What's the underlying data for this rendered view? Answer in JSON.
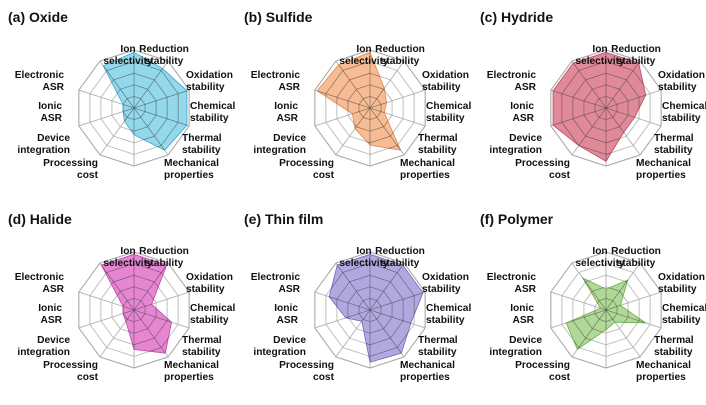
{
  "figure": {
    "axes": [
      [
        "Ion",
        "selectivity"
      ],
      [
        "Reduction",
        "stability"
      ],
      [
        "Oxidation",
        "stability"
      ],
      [
        "Chemical",
        "stability"
      ],
      [
        "Thermal",
        "stability"
      ],
      [
        "Mechanical",
        "properties"
      ],
      [
        "Processing",
        "cost"
      ],
      [
        "Device",
        "integration"
      ],
      [
        "Ionic",
        "ASR"
      ],
      [
        "Electronic",
        "ASR"
      ]
    ],
    "scale": {
      "min": 0,
      "max": 5,
      "rings": 5
    }
  },
  "chart_data": [
    {
      "type": "radar",
      "title": "(a) Oxide",
      "color": "#7bd0e6",
      "stroke": "#3aa7c7",
      "categories": [
        "Ion selectivity",
        "Reduction stability",
        "Oxidation stability",
        "Chemical stability",
        "Thermal stability",
        "Mechanical properties",
        "Processing cost",
        "Device integration",
        "Ionic ASR",
        "Electronic ASR"
      ],
      "values": [
        4.8,
        4.2,
        4.8,
        4.8,
        4.5,
        2.3,
        1.4,
        1.0,
        1.0,
        4.5
      ]
    },
    {
      "type": "radar",
      "title": "(b) Sulfide",
      "color": "#f5ad7c",
      "stroke": "#e08a50",
      "categories": [
        "Ion selectivity",
        "Reduction stability",
        "Oxidation stability",
        "Chemical stability",
        "Thermal stability",
        "Mechanical properties",
        "Processing cost",
        "Device integration",
        "Ionic ASR",
        "Electronic ASR"
      ],
      "values": [
        4.8,
        2.1,
        1.5,
        1.3,
        4.5,
        3.2,
        2.2,
        1.6,
        4.8,
        4.6
      ]
    },
    {
      "type": "radar",
      "title": "(c) Hydride",
      "color": "#d96f82",
      "stroke": "#b84b61",
      "categories": [
        "Ion selectivity",
        "Reduction stability",
        "Oxidation stability",
        "Chemical stability",
        "Thermal stability",
        "Mechanical properties",
        "Processing cost",
        "Device integration",
        "Ionic ASR",
        "Electronic ASR"
      ],
      "values": [
        4.8,
        4.8,
        3.6,
        2.6,
        2.6,
        4.6,
        4.0,
        4.8,
        4.8,
        4.8
      ]
    },
    {
      "type": "radar",
      "title": "(d) Halide",
      "color": "#e06ac8",
      "stroke": "#c246a8",
      "categories": [
        "Ion selectivity",
        "Reduction stability",
        "Oxidation stability",
        "Chemical stability",
        "Thermal stability",
        "Mechanical properties",
        "Processing cost",
        "Device integration",
        "Ionic ASR",
        "Electronic ASR"
      ],
      "values": [
        4.8,
        4.8,
        1.6,
        3.4,
        4.6,
        3.4,
        1.2,
        1.0,
        1.0,
        4.8
      ]
    },
    {
      "type": "radar",
      "title": "(e) Thin film",
      "color": "#9f96d8",
      "stroke": "#7168b8",
      "categories": [
        "Ion selectivity",
        "Reduction stability",
        "Oxidation stability",
        "Chemical stability",
        "Thermal stability",
        "Mechanical properties",
        "Processing cost",
        "Device integration",
        "Ionic ASR",
        "Electronic ASR"
      ],
      "values": [
        4.8,
        4.8,
        4.8,
        3.7,
        4.6,
        4.5,
        1.2,
        2.2,
        3.7,
        4.8
      ]
    },
    {
      "type": "radar",
      "title": "(f) Polymer",
      "color": "#9fd07f",
      "stroke": "#6dae4c",
      "categories": [
        "Ion selectivity",
        "Reduction stability",
        "Oxidation stability",
        "Chemical stability",
        "Thermal stability",
        "Mechanical properties",
        "Processing cost",
        "Device integration",
        "Ionic ASR",
        "Electronic ASR"
      ],
      "values": [
        1.8,
        3.2,
        1.3,
        3.6,
        1.3,
        1.7,
        4.2,
        3.6,
        0.5,
        3.4
      ]
    }
  ]
}
